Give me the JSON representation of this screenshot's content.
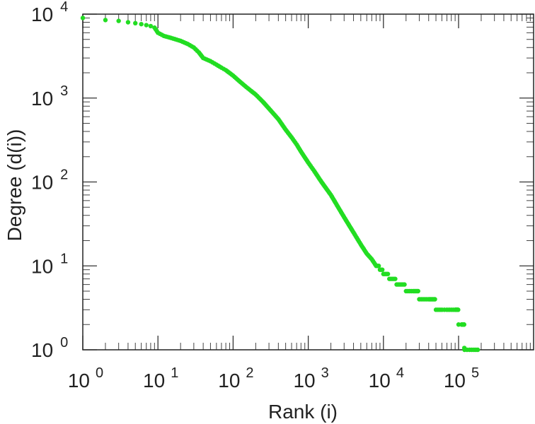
{
  "chart_data": {
    "type": "scatter",
    "x_scale": "log",
    "y_scale": "log",
    "xlabel": "Rank (i)",
    "ylabel": "Degree (d(i))",
    "xlim": [
      1,
      1000000
    ],
    "ylim": [
      1,
      10000
    ],
    "marker_color": "#22dd22",
    "x_ticks": [
      {
        "value": 1,
        "base": "10",
        "exp": "0"
      },
      {
        "value": 10,
        "base": "10",
        "exp": "1"
      },
      {
        "value": 100,
        "base": "10",
        "exp": "2"
      },
      {
        "value": 1000,
        "base": "10",
        "exp": "3"
      },
      {
        "value": 10000,
        "base": "10",
        "exp": "4"
      },
      {
        "value": 100000,
        "base": "10",
        "exp": "5"
      }
    ],
    "y_ticks": [
      {
        "value": 1,
        "base": "10",
        "exp": "0"
      },
      {
        "value": 10,
        "base": "10",
        "exp": "1"
      },
      {
        "value": 100,
        "base": "10",
        "exp": "2"
      },
      {
        "value": 1000,
        "base": "10",
        "exp": "3"
      },
      {
        "value": 10000,
        "base": "10",
        "exp": "4"
      }
    ],
    "points": [
      [
        1,
        9000
      ],
      [
        2,
        8500
      ],
      [
        3,
        8300
      ],
      [
        4,
        8000
      ],
      [
        5,
        7800
      ],
      [
        6,
        7600
      ],
      [
        7,
        7400
      ],
      [
        8,
        7200
      ],
      [
        9,
        6900
      ],
      [
        10,
        6000
      ],
      [
        12,
        5500
      ],
      [
        15,
        5200
      ],
      [
        20,
        4800
      ],
      [
        25,
        4400
      ],
      [
        30,
        4000
      ],
      [
        35,
        3500
      ],
      [
        40,
        3000
      ],
      [
        50,
        2750
      ],
      [
        60,
        2500
      ],
      [
        70,
        2300
      ],
      [
        80,
        2150
      ],
      [
        100,
        1850
      ],
      [
        120,
        1600
      ],
      [
        150,
        1350
      ],
      [
        200,
        1100
      ],
      [
        250,
        900
      ],
      [
        300,
        750
      ],
      [
        400,
        560
      ],
      [
        500,
        420
      ],
      [
        600,
        340
      ],
      [
        700,
        280
      ],
      [
        800,
        230
      ],
      [
        1000,
        170
      ],
      [
        1200,
        135
      ],
      [
        1500,
        100
      ],
      [
        2000,
        70
      ],
      [
        2500,
        50
      ],
      [
        3000,
        38
      ],
      [
        4000,
        25
      ],
      [
        5000,
        18
      ],
      [
        6000,
        14
      ],
      [
        7000,
        12
      ],
      [
        8000,
        10
      ],
      [
        9000,
        9
      ],
      [
        10000,
        8
      ],
      [
        12000,
        7
      ],
      [
        15000,
        6
      ],
      [
        20000,
        5
      ],
      [
        25000,
        5
      ],
      [
        30000,
        4
      ],
      [
        40000,
        4
      ],
      [
        50000,
        3
      ],
      [
        60000,
        3
      ],
      [
        70000,
        3
      ],
      [
        80000,
        3
      ],
      [
        90000,
        3
      ],
      [
        100000,
        2
      ],
      [
        110000,
        2
      ],
      [
        120000,
        1
      ],
      [
        140000,
        1
      ],
      [
        160000,
        1
      ],
      [
        180000,
        1
      ]
    ]
  }
}
